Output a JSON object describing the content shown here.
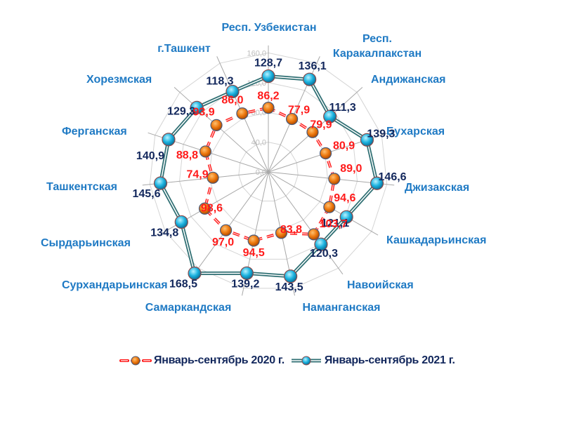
{
  "chart_data": {
    "type": "radar",
    "title": "",
    "categories": [
      "Респ. Узбекистан",
      "Респ. Каракалпакстан",
      "Андижанская",
      "Бухарская",
      "Джизакская",
      "Кашкадарьинская",
      "Навоийская",
      "Наманганская",
      "Самаркандская",
      "Сурхандарьинская",
      "Сырдарьинская",
      "Ташкентская",
      "Ферганская",
      "Хорезмская",
      "г.Ташкент"
    ],
    "series": [
      {
        "name": "Январь-сентябрь 2020 г.",
        "color": "#ff1a1a",
        "marker_color": "#e8740c",
        "line_style": "dashed",
        "values": [
          86.2,
          77.9,
          79.9,
          80.9,
          89.0,
          94.6,
          103.7,
          83.8,
          94.5,
          97.0,
          98.6,
          74.9,
          88.8,
          93.9,
          86.0
        ],
        "labels": [
          "86,2",
          "77,9",
          "79,9",
          "80,9",
          "89,0",
          "94,6",
          "103,7",
          "83,8",
          "94,5",
          "97,0",
          "98,6",
          "74,9",
          "88,8",
          "93,9",
          "86,0"
        ]
      },
      {
        "name": "Январь-сентябрь 2021 г.",
        "color": "#2f6f73",
        "marker_color": "#1cb3e0",
        "line_style": "double",
        "values": [
          128.7,
          136.1,
          111.3,
          139.3,
          146.6,
          121.1,
          120.3,
          143.5,
          139.2,
          168.5,
          134.8,
          145.6,
          140.9,
          129.3,
          118.3
        ],
        "labels": [
          "128,7",
          "136,1",
          "111,3",
          "139,3",
          "146,6",
          "121,1",
          "120,3",
          "143,5",
          "139,2",
          "168,5",
          "134,8",
          "145,6",
          "140,9",
          "129,3",
          "118,3"
        ]
      }
    ],
    "radial_axis": {
      "ticks": [
        0,
        40,
        80,
        120,
        160
      ],
      "tick_labels": [
        "0,0",
        "40,0",
        "80,0",
        "120,0",
        "160,0"
      ],
      "range": [
        0,
        160
      ]
    },
    "grid": true,
    "legend_position": "bottom"
  },
  "legend": {
    "items": [
      {
        "label": "Январь-сентябрь 2020 г."
      },
      {
        "label": "Январь-сентябрь 2021 г."
      }
    ]
  }
}
